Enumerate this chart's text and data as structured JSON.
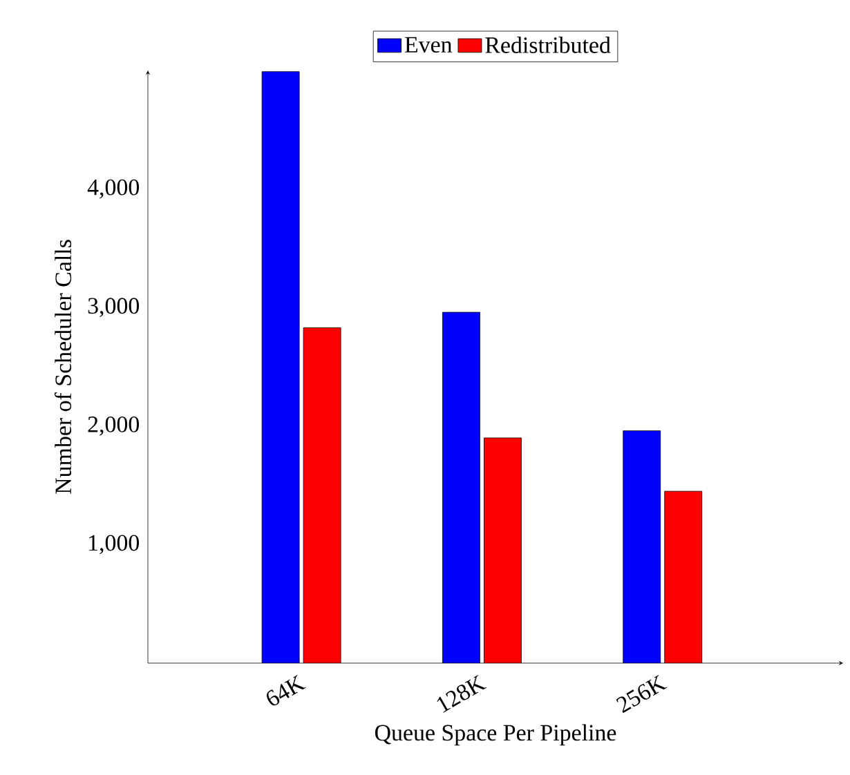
{
  "chart_data": {
    "type": "bar",
    "xlabel": "Queue Space Per Pipeline",
    "ylabel": "Number of Scheduler Calls",
    "categories": [
      "64K",
      "128K",
      "256K"
    ],
    "series": [
      {
        "name": "Even",
        "color": "#0000ff",
        "values": [
          4990,
          2960,
          1960
        ]
      },
      {
        "name": "Redistributed",
        "color": "#ff0000",
        "values": [
          2830,
          1900,
          1450
        ]
      }
    ],
    "ylim": [
      0,
      5000
    ],
    "yticks": [
      {
        "value": 1000,
        "label": "1,000"
      },
      {
        "value": 2000,
        "label": "2,000"
      },
      {
        "value": 3000,
        "label": "3,000"
      },
      {
        "value": 4000,
        "label": "4,000"
      }
    ],
    "legend": "top"
  }
}
